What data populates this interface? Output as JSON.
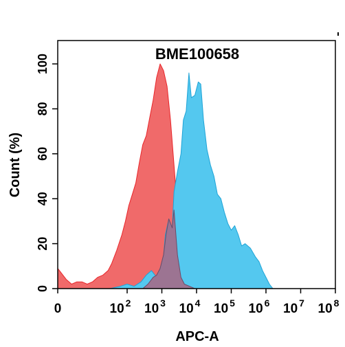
{
  "chart_data": {
    "type": "area",
    "title": "BME100658",
    "xlabel": "APC-A",
    "ylabel": "Count  (%)",
    "x_scale": "biexponential-log",
    "xlim_decades": [
      0,
      8
    ],
    "ylim": [
      0,
      100
    ],
    "x_ticks": [
      {
        "pos": 0,
        "base": "0",
        "exp": ""
      },
      {
        "pos": 2,
        "base": "10",
        "exp": "2"
      },
      {
        "pos": 3,
        "base": "10",
        "exp": "3"
      },
      {
        "pos": 4,
        "base": "10",
        "exp": "4"
      },
      {
        "pos": 5,
        "base": "10",
        "exp": "5"
      },
      {
        "pos": 6,
        "base": "10",
        "exp": "6"
      },
      {
        "pos": 7,
        "base": "10",
        "exp": "7"
      },
      {
        "pos": 8,
        "base": "10",
        "exp": "8"
      }
    ],
    "y_ticks": [
      0,
      20,
      40,
      60,
      80,
      100
    ],
    "grid": false,
    "legend": "none",
    "series": [
      {
        "color": "#f06a6a",
        "stroke": "#e8252a",
        "x": [
          0,
          0.1,
          0.25,
          0.4,
          0.55,
          0.7,
          0.85,
          1.0,
          1.15,
          1.3,
          1.45,
          1.55,
          1.7,
          1.85,
          1.95,
          2.05,
          2.15,
          2.25,
          2.35,
          2.45,
          2.55,
          2.65,
          2.75,
          2.85,
          2.95,
          3.05,
          3.15,
          3.25,
          3.35,
          3.45,
          3.55,
          3.65,
          3.8,
          3.95
        ],
        "y": [
          9,
          7,
          4,
          2,
          3,
          3,
          2,
          3,
          5,
          6,
          8,
          11,
          17,
          24,
          30,
          37,
          42,
          47,
          56,
          64,
          68,
          76,
          84,
          94,
          100,
          97,
          90,
          75,
          55,
          35,
          15,
          5,
          2,
          0
        ]
      },
      {
        "color": "#54c8ef",
        "stroke": "#1ea3d6",
        "x": [
          1.5,
          1.8,
          2.0,
          2.2,
          2.4,
          2.55,
          2.7,
          2.85,
          2.95,
          3.05,
          3.1,
          3.2,
          3.3,
          3.35,
          3.45,
          3.55,
          3.62,
          3.7,
          3.78,
          3.85,
          3.95,
          4.05,
          4.12,
          4.2,
          4.3,
          4.4,
          4.5,
          4.6,
          4.7,
          4.8,
          4.9,
          5.0,
          5.1,
          5.2,
          5.3,
          5.4,
          5.55,
          5.7,
          5.8,
          5.9,
          6.0,
          6.1,
          6.2
        ],
        "y": [
          0,
          1,
          2,
          1,
          3,
          6,
          8,
          5,
          9,
          15,
          24,
          31,
          27,
          43,
          52,
          60,
          75,
          79,
          96,
          85,
          86,
          92,
          91,
          75,
          62,
          55,
          50,
          42,
          40,
          34,
          29,
          26,
          28,
          24,
          19,
          20,
          18,
          14,
          12,
          8,
          5,
          2,
          0
        ]
      },
      {
        "color": "#9c7492",
        "stroke": "#6e4a66",
        "x": [
          2.45,
          2.6,
          2.75,
          2.85,
          2.95,
          3.05,
          3.12,
          3.2,
          3.3,
          3.35,
          3.45,
          3.55,
          3.65,
          3.8,
          3.95
        ],
        "y": [
          0,
          2,
          5,
          6,
          9,
          15,
          24,
          31,
          27,
          35,
          15,
          5,
          2,
          1,
          0
        ]
      }
    ]
  }
}
